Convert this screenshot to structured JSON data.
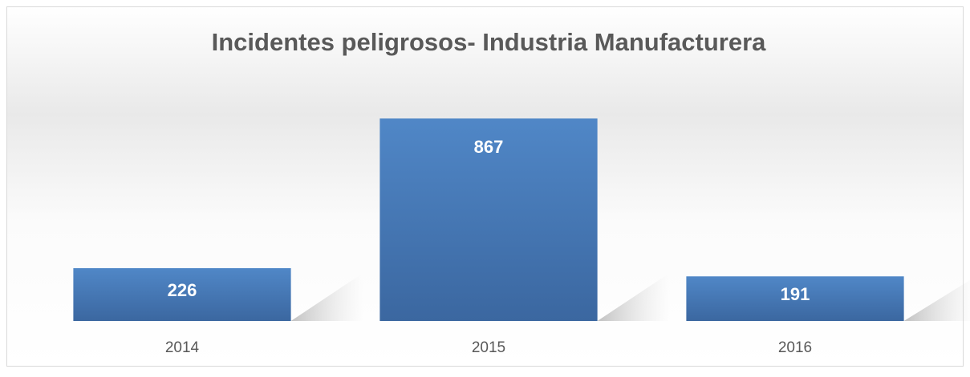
{
  "chart_data": {
    "type": "bar",
    "title": "Incidentes peligrosos- Industria Manufacturera",
    "categories": [
      "2014",
      "2015",
      "2016"
    ],
    "values": [
      226,
      867,
      191
    ],
    "color": "#4a7ebb"
  }
}
